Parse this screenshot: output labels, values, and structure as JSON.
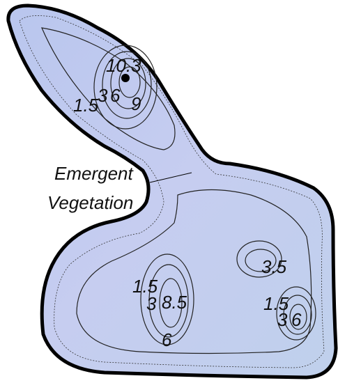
{
  "map": {
    "labels": [
      {
        "text": "10.3"
      },
      {
        "text": "1.5"
      },
      {
        "text": "3"
      },
      {
        "text": "6"
      },
      {
        "text": "9"
      },
      {
        "text": "Emergent"
      },
      {
        "text": "Vegetation"
      },
      {
        "text": "3.5"
      },
      {
        "text": "1.5"
      },
      {
        "text": "3"
      },
      {
        "text": "8.5"
      },
      {
        "text": "6"
      },
      {
        "text": "1.5"
      },
      {
        "text": "3"
      },
      {
        "text": "6"
      }
    ]
  }
}
